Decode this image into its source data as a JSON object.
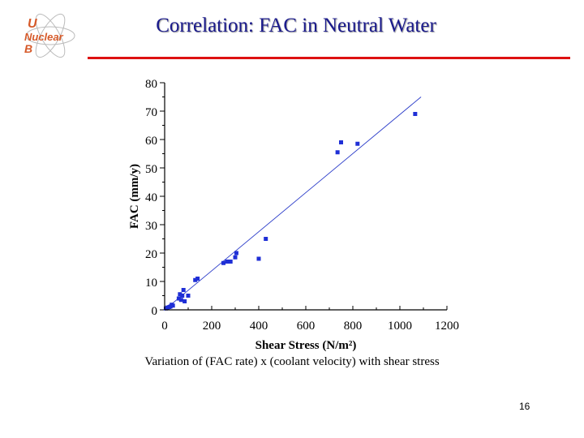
{
  "slide": {
    "title": "Correlation: FAC in Neutral Water",
    "logo_text": [
      "U",
      "Nuclear",
      "B"
    ],
    "caption": "Variation of (FAC rate) x (coolant velocity) with shear stress",
    "page_number": "16",
    "colors": {
      "title": "#1a1a8c",
      "rule": "#dd1111",
      "points": "#1f2fd6",
      "fit_line": "#2b3cc9",
      "logo": "#d65a2a"
    }
  },
  "chart_data": {
    "type": "scatter",
    "title": "",
    "xlabel": "Shear Stress (N/m²)",
    "ylabel": "FAC (mm/y)",
    "xlim": [
      0,
      1200
    ],
    "ylim": [
      0,
      80
    ],
    "x_ticks": [
      0,
      200,
      400,
      600,
      800,
      1000,
      1200
    ],
    "y_ticks": [
      0,
      10,
      20,
      30,
      40,
      50,
      60,
      70,
      80
    ],
    "grid": false,
    "series": [
      {
        "points": [
          [
            5,
            0.5
          ],
          [
            12,
            0.8
          ],
          [
            20,
            1.0
          ],
          [
            25,
            1.2
          ],
          [
            30,
            1.8
          ],
          [
            35,
            1.5
          ],
          [
            60,
            4
          ],
          [
            65,
            5.5
          ],
          [
            70,
            3.5
          ],
          [
            75,
            5
          ],
          [
            80,
            7
          ],
          [
            85,
            3
          ],
          [
            100,
            5
          ],
          [
            130,
            10.5
          ],
          [
            140,
            11
          ],
          [
            250,
            16.5
          ],
          [
            265,
            17
          ],
          [
            280,
            17
          ],
          [
            300,
            18.5
          ],
          [
            305,
            20
          ],
          [
            400,
            18
          ],
          [
            430,
            25
          ],
          [
            735,
            55.5
          ],
          [
            750,
            59
          ],
          [
            820,
            58.5
          ],
          [
            1065,
            69
          ]
        ]
      }
    ],
    "fit_line": {
      "x": [
        0,
        1090
      ],
      "y": [
        0,
        75
      ]
    }
  }
}
